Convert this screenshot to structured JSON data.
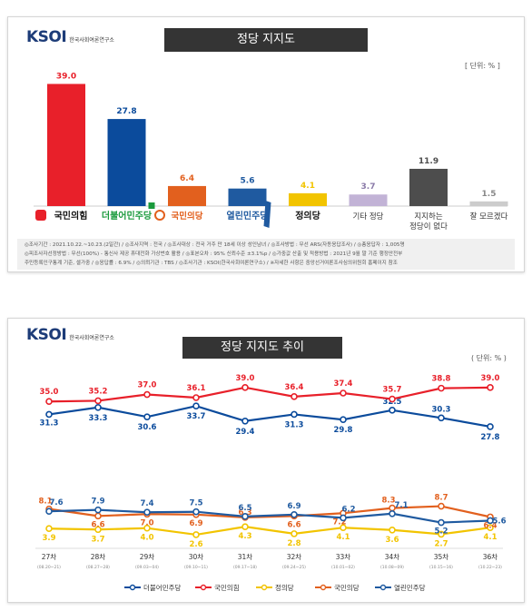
{
  "logo": {
    "text": "KSOI",
    "subtitle": "한국사회여론연구소"
  },
  "colors": {
    "ppp": "#e8202a",
    "dem": "#0b4b9c",
    "plp": "#e2601e",
    "oc": "#1f5aa0",
    "justice": "#f2c400",
    "other": "#c2b3d6",
    "none": "#4d4d4d",
    "dunno": "#cccccc"
  },
  "chart1": {
    "title": "정당 지지도",
    "unit": "[ 단위: % ]",
    "notes": [
      "◎조사기간 : 2021.10.22.~10.23.(2일간)  /  ◎조사지역 : 전국  /  ◎조사대상 : 전국 거주 만 18세 이상 성인남녀  /  ◎조사방법 : 무선 ARS(자동응답조사)  /  ◎총응답자 : 1,005명",
      "◎피조사자선정방법 : 무선(100%) - 통신사 제공 휴대전화 가상번호 활용  /  ◎표본오차 : 95% 신뢰수준 ±3.1%p  /  ◎가중값 산출 및 적용방법 : 2021년 9월 말 기준 행정안전부",
      "주민등록인구통계 기준, 셀가중  /  ◎응답률 : 6.9%  /  ◎의뢰기관 : TBS  /  ◎조사기관 : KSOI(한국사회여론연구소)  /  ※자세한 사항은 중앙선거여론조사심의위원회 홈페이지 참조"
    ]
  },
  "chart2": {
    "title": "정당 지지도 추이",
    "unit": "( 단위: % )"
  },
  "chart_data": [
    {
      "type": "bar",
      "title": "정당 지지도",
      "categories": [
        "국민의힘",
        "더불어민주당",
        "국민의당",
        "열린민주당",
        "정의당",
        "기타 정당",
        "지지하는 정당이 없다",
        "잘 모르겠다"
      ],
      "values": [
        39.0,
        27.8,
        6.4,
        5.6,
        4.1,
        3.7,
        11.9,
        1.5
      ],
      "value_labels": [
        "39.0",
        "27.8",
        "6.4",
        "5.6",
        "4.1",
        "3.7",
        "11.9",
        "1.5"
      ],
      "ylim": [
        0,
        40
      ]
    },
    {
      "type": "line",
      "title": "정당 지지도 추이",
      "x": [
        "27차",
        "28차",
        "29차",
        "30차",
        "31차",
        "32차",
        "33차",
        "34차",
        "35차",
        "36차"
      ],
      "x_sub": [
        "(08.20~21)",
        "(08.27~28)",
        "(09.03~04)",
        "(09.10~11)",
        "(09.17~18)",
        "(09.24~25)",
        "(10.01~02)",
        "(10.08~09)",
        "(10.15~16)",
        "(10.22~23)"
      ],
      "series": [
        {
          "name": "더불어민주당",
          "values": [
            31.3,
            33.3,
            30.6,
            33.7,
            29.4,
            31.3,
            29.8,
            32.5,
            30.3,
            27.8
          ],
          "labels": [
            "31.3",
            "33.3",
            "30.6",
            "33.7",
            "29.4",
            "31.3",
            "29.8",
            "32.5",
            "30.3",
            "27.8"
          ]
        },
        {
          "name": "국민의힘",
          "values": [
            35.0,
            35.2,
            37.0,
            36.1,
            39.0,
            36.4,
            37.4,
            35.7,
            38.8,
            39.0
          ],
          "labels": [
            "35.0",
            "35.2",
            "37.0",
            "36.1",
            "39.0",
            "36.4",
            "37.4",
            "35.7",
            "38.8",
            "39.0"
          ]
        },
        {
          "name": "정의당",
          "values": [
            3.9,
            3.7,
            4.0,
            2.6,
            4.3,
            2.8,
            4.1,
            3.6,
            2.7,
            4.1
          ],
          "labels": [
            "3.9",
            "3.7",
            "4.0",
            "2.6",
            "4.3",
            "2.8",
            "4.1",
            "3.6",
            "2.7",
            "4.1"
          ]
        },
        {
          "name": "국민의당",
          "values": [
            8.1,
            6.6,
            7.0,
            6.9,
            6.3,
            6.6,
            7.2,
            8.3,
            8.7,
            6.4
          ],
          "labels": [
            "8.1",
            "6.6",
            "7.0",
            "6.9",
            "6.3",
            "6.6",
            "7.2",
            "8.3",
            "8.7",
            "6.4"
          ]
        },
        {
          "name": "열린민주당",
          "values": [
            7.6,
            7.9,
            7.4,
            7.5,
            6.5,
            6.9,
            6.2,
            7.1,
            5.2,
            5.6
          ],
          "labels": [
            "7.6",
            "7.9",
            "7.4",
            "7.5",
            "6.5",
            "6.9",
            "6.2",
            "7.1",
            "5.2",
            "5.6"
          ]
        }
      ]
    }
  ]
}
